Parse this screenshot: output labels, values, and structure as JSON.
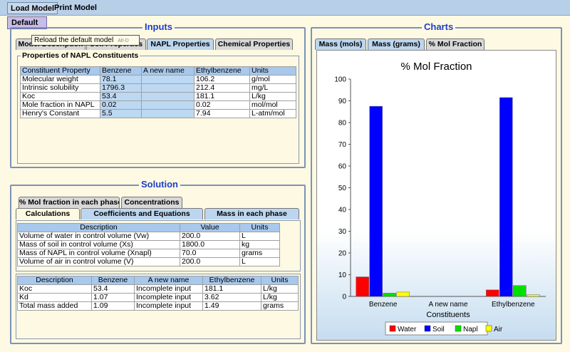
{
  "menu": {
    "load_model": "Load Model",
    "print_model": "Print Model"
  },
  "dropdown": {
    "default_item": "Default"
  },
  "tooltip": {
    "text": "Reload the default model",
    "accel": "Alt-D"
  },
  "inputs": {
    "title": "Inputs",
    "tabs": [
      "Model Description",
      "Soil Properties",
      "NAPL Properties",
      "Chemical Properties"
    ],
    "group_title": "Properties of NAPL Constituents",
    "columns": [
      "Constituent Property",
      "Benzene",
      "A new name",
      "Ethylbenzene",
      "Units"
    ],
    "rows": [
      [
        "Molecular weight",
        "78.1",
        "",
        "106.2",
        "g/mol"
      ],
      [
        "Intrinsic solubility",
        "1796.3",
        "",
        "212.4",
        "mg/L"
      ],
      [
        "Koc",
        "53.4",
        "",
        "181.1",
        "L/kg"
      ],
      [
        "Mole fraction in NAPL",
        "0.02",
        "",
        "0.02",
        "mol/mol"
      ],
      [
        "Henry's Constant",
        "5.5",
        "",
        "7.94",
        "L-atm/mol"
      ]
    ]
  },
  "solution": {
    "title": "Solution",
    "tabs_row1": [
      "% Mol fraction in each phase",
      "Concentrations"
    ],
    "tabs_row2": [
      "Calculations",
      "Coefficients and Equations",
      "Mass in each phase"
    ],
    "table1": {
      "columns": [
        "Description",
        "Value",
        "Units"
      ],
      "rows": [
        [
          "Volume of water in control volume (Vw)",
          "200.0",
          "L"
        ],
        [
          "Mass of soil in control volume (Xs)",
          "1800.0",
          "kg"
        ],
        [
          "Mass of NAPL in control volume (Xnapl)",
          "70.0",
          "grams"
        ],
        [
          "Volume of air in control volume (V)",
          "200.0",
          "L"
        ]
      ]
    },
    "table2": {
      "columns": [
        "Description",
        "Benzene",
        "A new name",
        "Ethylbenzene",
        "Units"
      ],
      "rows": [
        [
          "Koc",
          "53.4",
          "Incomplete input",
          "181.1",
          "L/kg"
        ],
        [
          "Kd",
          "1.07",
          "Incomplete input",
          "3.62",
          "L/kg"
        ],
        [
          "Total mass added",
          "1.09",
          "Incomplete input",
          "1.49",
          "grams"
        ]
      ]
    }
  },
  "charts": {
    "title": "Charts",
    "tabs": [
      "Mass (mols)",
      "Mass (grams)",
      "% Mol Fraction"
    ]
  },
  "chart_data": {
    "type": "bar",
    "title": "% Mol Fraction",
    "xlabel": "Constituents",
    "ylabel": "",
    "ylim": [
      0,
      100
    ],
    "yticks": [
      0,
      10,
      20,
      30,
      40,
      50,
      60,
      70,
      80,
      90,
      100
    ],
    "categories": [
      "Benzene",
      "A new name",
      "Ethylbenzene"
    ],
    "series": [
      {
        "name": "Water",
        "color": "#ff0000",
        "values": [
          9,
          0,
          3
        ]
      },
      {
        "name": "Soil",
        "color": "#0000ff",
        "values": [
          87.5,
          0,
          91.5
        ]
      },
      {
        "name": "Napl",
        "color": "#00e000",
        "values": [
          1.5,
          0,
          5
        ]
      },
      {
        "name": "Air",
        "color": "#ffff00",
        "values": [
          2,
          0,
          0.8
        ]
      }
    ],
    "legend": "bottom"
  }
}
